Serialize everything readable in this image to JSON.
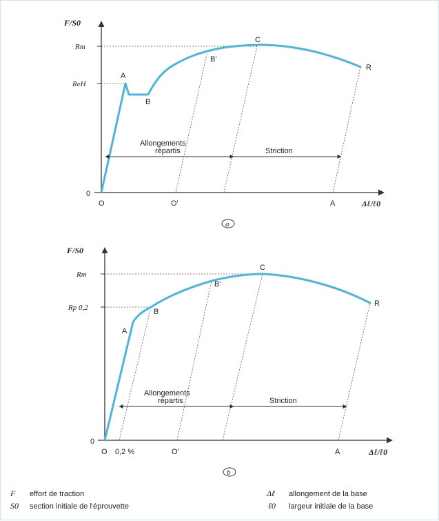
{
  "colors": {
    "curve": "#49b6e0",
    "axis": "#333333",
    "guide": "#555555"
  },
  "diagram_a": {
    "caption": "a",
    "y_axis_title": "F/S0",
    "x_axis_title": "Δℓ/ℓ0",
    "ticks_y": {
      "rm": "Rm",
      "reh": "ReH",
      "zero": "0"
    },
    "points": {
      "A": "A",
      "B": "B",
      "B_prime": "B'",
      "C": "C",
      "R": "R"
    },
    "x_labels": {
      "O": "O",
      "O_prime": "O'",
      "A": "A"
    },
    "annotations": {
      "allongements_line1": "Allongements",
      "allongements_line2": "répartis",
      "striction": "Striction"
    }
  },
  "diagram_b": {
    "caption": "b",
    "y_axis_title": "F/S0",
    "x_axis_title": "Δℓ/ℓ0",
    "ticks_y": {
      "rm": "Rm",
      "rp": "Rp 0,2",
      "zero": "0"
    },
    "points": {
      "A": "A",
      "B": "B",
      "B_prime": "B'",
      "C": "C",
      "R": "R"
    },
    "x_labels": {
      "O": "O",
      "offset": "0,2 %",
      "O_prime": "O'",
      "A": "A"
    },
    "annotations": {
      "allongements_line1": "Allongements",
      "allongements_line2": "répartis",
      "striction": "Striction"
    }
  },
  "legend": {
    "items": [
      {
        "symbol": "F",
        "text": "effort de traction"
      },
      {
        "symbol": "S0",
        "text": "section initiale de l'éprouvette"
      },
      {
        "symbol": "Δℓ",
        "text": "allongement de la base"
      },
      {
        "symbol": "ℓ0",
        "text": "largeur initiale de la base"
      }
    ]
  }
}
